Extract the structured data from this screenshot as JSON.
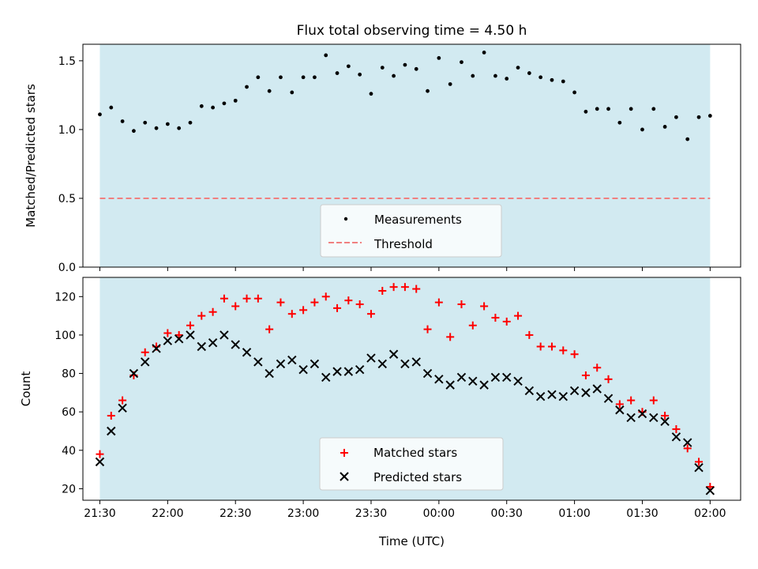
{
  "chart_data": [
    {
      "type": "scatter",
      "title": "Flux total observing time = 4.50 h",
      "ylabel": "Matched/Predicted stars",
      "xlabel": "",
      "x_ticks": [
        "21:30",
        "22:00",
        "22:30",
        "23:00",
        "23:30",
        "00:00",
        "00:30",
        "01:00",
        "01:30",
        "02:00"
      ],
      "x_tick_positions_min": [
        0,
        30,
        60,
        90,
        120,
        150,
        180,
        210,
        240,
        270
      ],
      "x_labels_visible": false,
      "y_ticks": [
        "0.0",
        "0.5",
        "1.0",
        "1.5"
      ],
      "y_tick_values": [
        0.0,
        0.5,
        1.0,
        1.5
      ],
      "ylim": [
        0,
        1.62
      ],
      "xlim_minutes_after_2130": [
        -7.5,
        283.5
      ],
      "shaded_span_minutes_after_2130": [
        0,
        270
      ],
      "shade_color": "#add8e6",
      "legend": {
        "placement": "lower center",
        "entries": [
          "Measurements",
          "Threshold"
        ]
      },
      "threshold": {
        "name": "Threshold",
        "value": 0.5,
        "color": "#f08080",
        "style": "dashed"
      },
      "series": [
        {
          "name": "Measurements",
          "color": "#000000",
          "marker": "dot",
          "x_minutes_after_2130": [
            0,
            5,
            10,
            15,
            20,
            25,
            30,
            35,
            40,
            45,
            50,
            55,
            60,
            65,
            70,
            75,
            80,
            85,
            90,
            95,
            100,
            105,
            110,
            115,
            120,
            125,
            130,
            135,
            140,
            145,
            150,
            155,
            160,
            165,
            170,
            175,
            180,
            185,
            190,
            195,
            200,
            205,
            210,
            215,
            220,
            225,
            230,
            235,
            240,
            245,
            250,
            255,
            260,
            265,
            270
          ],
          "values": [
            1.11,
            1.16,
            1.06,
            0.99,
            1.05,
            1.01,
            1.04,
            1.01,
            1.05,
            1.17,
            1.16,
            1.19,
            1.21,
            1.31,
            1.38,
            1.28,
            1.38,
            1.27,
            1.38,
            1.38,
            1.54,
            1.41,
            1.46,
            1.4,
            1.26,
            1.45,
            1.39,
            1.47,
            1.44,
            1.28,
            1.52,
            1.33,
            1.49,
            1.39,
            1.56,
            1.39,
            1.37,
            1.45,
            1.41,
            1.38,
            1.36,
            1.35,
            1.27,
            1.13,
            1.15,
            1.15,
            1.05,
            1.15,
            1.0,
            1.15,
            1.02,
            1.09,
            0.93,
            1.09,
            1.1
          ]
        }
      ]
    },
    {
      "type": "scatter",
      "title": "",
      "ylabel": "Count",
      "xlabel": "Time (UTC)",
      "x_ticks": [
        "21:30",
        "22:00",
        "22:30",
        "23:00",
        "23:30",
        "00:00",
        "00:30",
        "01:00",
        "01:30",
        "02:00"
      ],
      "x_tick_positions_min": [
        0,
        30,
        60,
        90,
        120,
        150,
        180,
        210,
        240,
        270
      ],
      "y_ticks": [
        "20",
        "40",
        "60",
        "80",
        "100",
        "120"
      ],
      "y_tick_values": [
        20,
        40,
        60,
        80,
        100,
        120
      ],
      "ylim": [
        14,
        130
      ],
      "xlim_minutes_after_2130": [
        -7.5,
        283.5
      ],
      "shaded_span_minutes_after_2130": [
        0,
        270
      ],
      "shade_color": "#add8e6",
      "legend": {
        "placement": "lower center",
        "entries": [
          "Matched stars",
          "Predicted stars"
        ]
      },
      "series": [
        {
          "name": "Matched stars",
          "color": "#ff0000",
          "marker": "plus",
          "x_minutes_after_2130": [
            0,
            5,
            10,
            15,
            20,
            25,
            30,
            35,
            40,
            45,
            50,
            55,
            60,
            65,
            70,
            75,
            80,
            85,
            90,
            95,
            100,
            105,
            110,
            115,
            120,
            125,
            130,
            135,
            140,
            145,
            150,
            155,
            160,
            165,
            170,
            175,
            180,
            185,
            190,
            195,
            200,
            205,
            210,
            215,
            220,
            225,
            230,
            235,
            240,
            245,
            250,
            255,
            260,
            265,
            270
          ],
          "values": [
            38,
            58,
            66,
            79,
            91,
            94,
            101,
            100,
            105,
            110,
            112,
            119,
            115,
            119,
            119,
            103,
            117,
            111,
            113,
            117,
            120,
            114,
            118,
            116,
            111,
            123,
            125,
            125,
            124,
            103,
            117,
            99,
            116,
            105,
            115,
            109,
            107,
            110,
            100,
            94,
            94,
            92,
            90,
            79,
            83,
            77,
            64,
            66,
            60,
            66,
            58,
            51,
            41,
            34,
            21
          ]
        },
        {
          "name": "Predicted stars",
          "color": "#000000",
          "marker": "x",
          "x_minutes_after_2130": [
            0,
            5,
            10,
            15,
            20,
            25,
            30,
            35,
            40,
            45,
            50,
            55,
            60,
            65,
            70,
            75,
            80,
            85,
            90,
            95,
            100,
            105,
            110,
            115,
            120,
            125,
            130,
            135,
            140,
            145,
            150,
            155,
            160,
            165,
            170,
            175,
            180,
            185,
            190,
            195,
            200,
            205,
            210,
            215,
            220,
            225,
            230,
            235,
            240,
            245,
            250,
            255,
            260,
            265,
            270
          ],
          "values": [
            34,
            50,
            62,
            80,
            86,
            93,
            97,
            98,
            100,
            94,
            96,
            100,
            95,
            91,
            86,
            80,
            85,
            87,
            82,
            85,
            78,
            81,
            81,
            82,
            88,
            85,
            90,
            85,
            86,
            80,
            77,
            74,
            78,
            76,
            74,
            78,
            78,
            76,
            71,
            68,
            69,
            68,
            71,
            70,
            72,
            67,
            61,
            57,
            59,
            57,
            55,
            47,
            44,
            31,
            19
          ]
        }
      ]
    }
  ]
}
